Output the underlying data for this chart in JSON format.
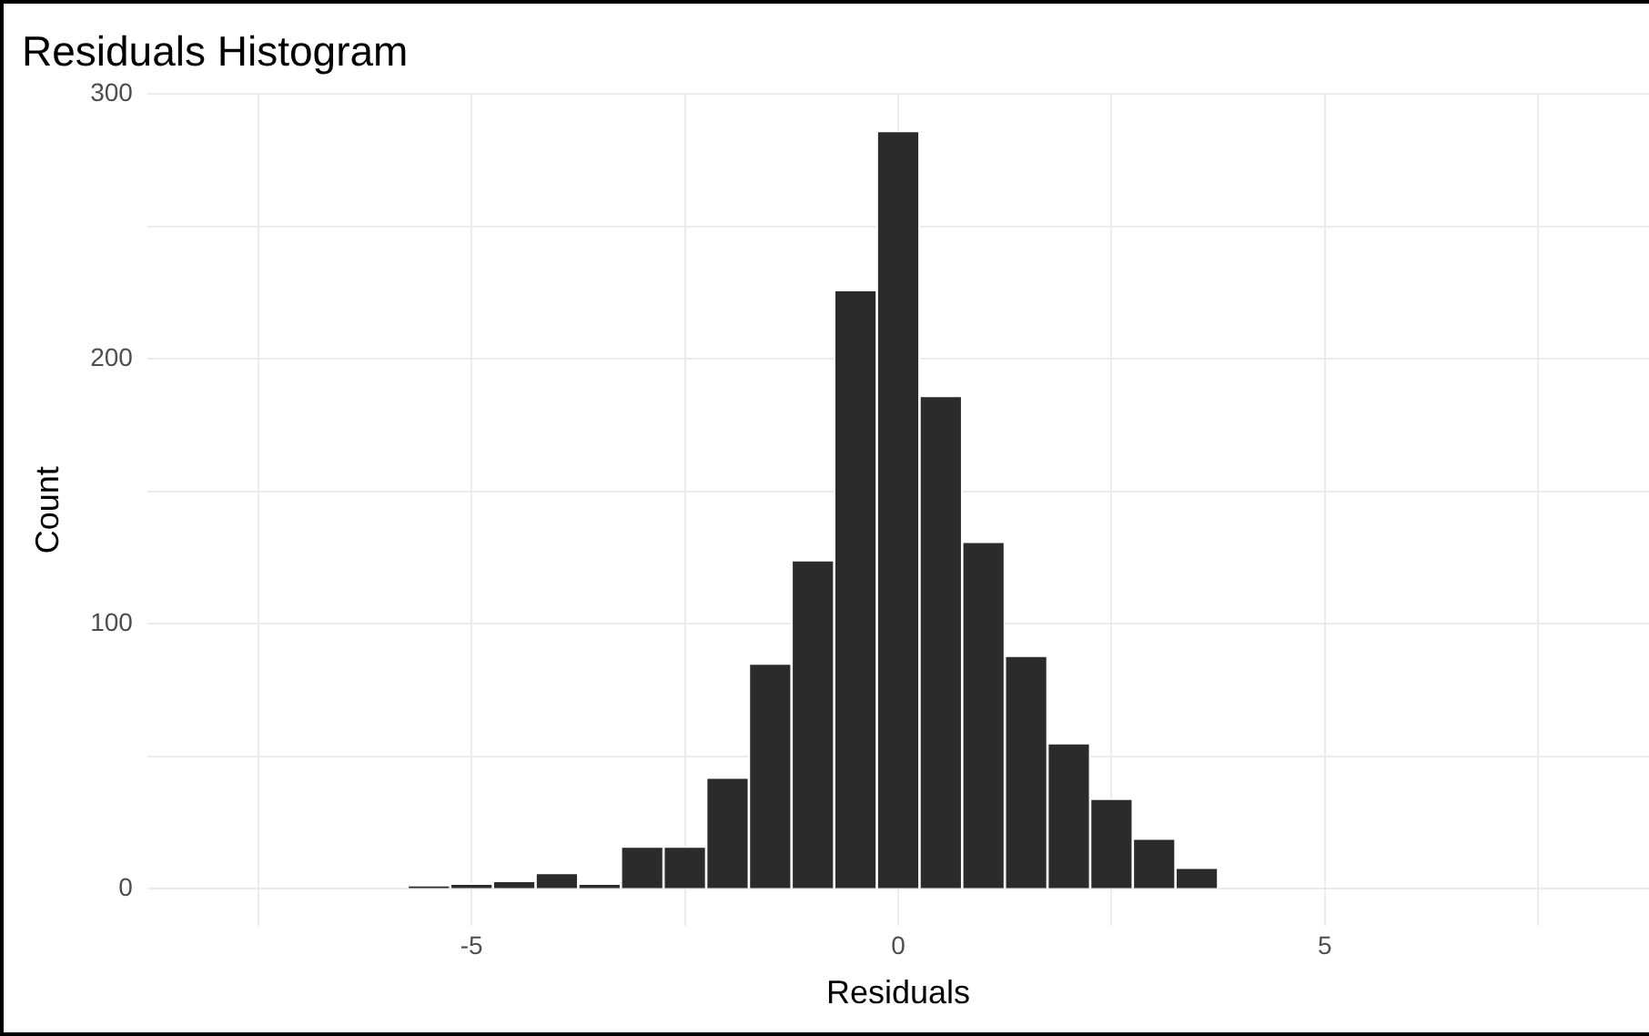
{
  "chart_data": {
    "type": "histogram",
    "title": "Residuals Histogram",
    "xlabel": "Residuals",
    "ylabel": "Count",
    "bins": [
      -5.75,
      -5.25,
      -4.75,
      -4.25,
      -3.75,
      -3.25,
      -2.75,
      -2.25,
      -1.75,
      -1.25,
      -0.75,
      -0.25,
      0.25,
      0.75,
      1.25,
      1.75,
      2.25,
      2.75,
      3.25,
      3.75,
      4.25,
      4.75
    ],
    "values": [
      1,
      2,
      3,
      6,
      2,
      16,
      16,
      42,
      85,
      124,
      226,
      286,
      186,
      131,
      88,
      55,
      34,
      19,
      8,
      0,
      0
    ],
    "color": "#2b2b2b",
    "xlim": [
      -8.8,
      8.8
    ],
    "xticks": [
      {
        "value": -7.5,
        "label": null
      },
      -5,
      {
        "value": -2.5,
        "label": null
      },
      0,
      {
        "value": 2.5,
        "label": null
      },
      5,
      {
        "value": 7.5,
        "label": null
      }
    ],
    "ylim": [
      -14,
      300
    ],
    "yticks": [
      0,
      {
        "value": 50,
        "label": null
      },
      100,
      {
        "value": 150,
        "label": null
      },
      200,
      {
        "value": 250,
        "label": null
      },
      300
    ],
    "grid": true
  }
}
